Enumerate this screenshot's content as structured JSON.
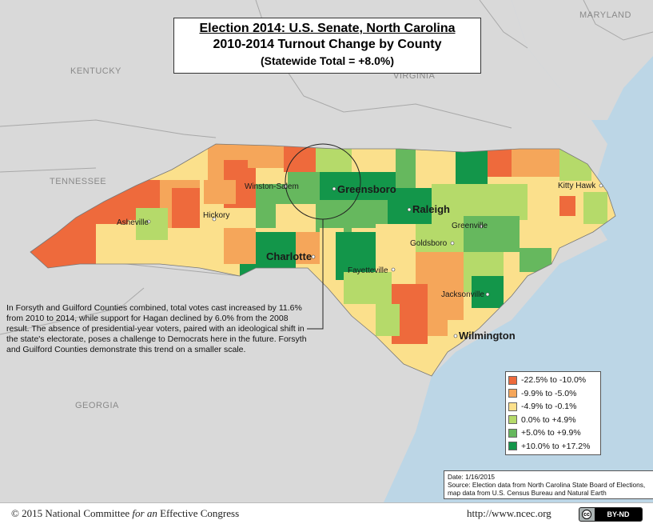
{
  "title": {
    "line1": "Election 2014: U.S. Senate, North Carolina",
    "line2": "2010-2014 Turnout Change by County",
    "line3": "(Statewide Total = +8.0%)"
  },
  "states": [
    "KENTUCKY",
    "VIRGINIA",
    "MARYLAND",
    "TENNESSEE",
    "GEORGIA"
  ],
  "cities": {
    "winston_salem": "Winston-Salem",
    "greensboro": "Greensboro",
    "raleigh": "Raleigh",
    "kitty_hawk": "Kitty Hawk",
    "asheville": "Asheville",
    "hickory": "Hickory",
    "greenville": "Greenville",
    "goldsboro": "Goldsboro",
    "charlotte": "Charlotte",
    "fayetteville": "Fayetteville",
    "jacksonville": "Jacksonville",
    "wilmington": "Wilmington"
  },
  "annotation": "In Forsyth and Guilford Counties combined, total votes cast increased by 11.6% from 2010 to 2014, while support for Hagan declined by 6.0% from the 2008 result.  The absence of presidential-year voters, paired with an ideological shift in the state's electorate, poses a challenge to Democrats here in the future.  Forsyth and Guilford Counties demonstrate this trend on a smaller scale.",
  "legend": [
    {
      "label": "-22.5% to -10.0%",
      "color": "#ee6a3c"
    },
    {
      "label": "-9.9% to -5.0%",
      "color": "#f5a65a"
    },
    {
      "label": "-4.9% to -0.1%",
      "color": "#fbe08c"
    },
    {
      "label": "0.0% to +4.9%",
      "color": "#b5da6a"
    },
    {
      "label": "+5.0% to +9.9%",
      "color": "#66b85e"
    },
    {
      "label": "+10.0% to +17.2%",
      "color": "#13964a"
    }
  ],
  "source": {
    "date": "Date: 1/16/2015",
    "text": "Source: Election data from North Carolina State Board of Elections, map data from U.S. Census Bureau and Natural Earth"
  },
  "footer": {
    "copyright": "© 2015 National Committee ",
    "copyright_italic": "for an",
    "copyright_end": " Effective Congress",
    "url": "http://www.ncec.org",
    "license": "BY-ND",
    "license_symbol": "cc"
  }
}
